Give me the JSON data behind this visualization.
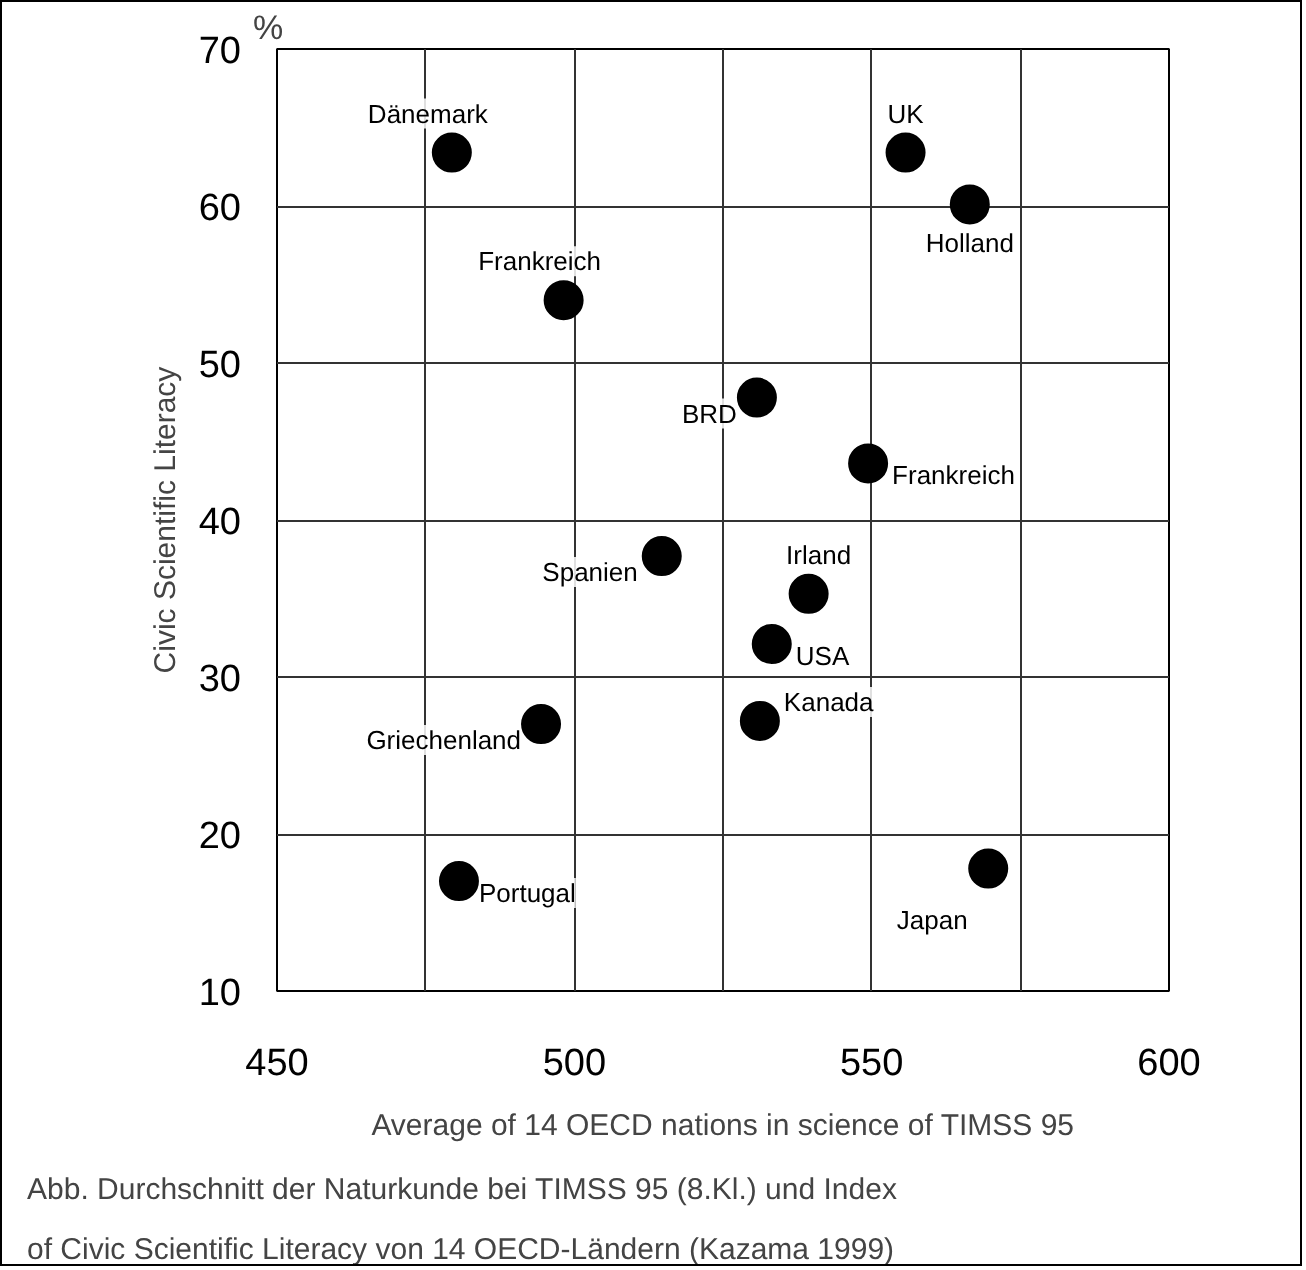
{
  "chart_data": {
    "type": "scatter",
    "xlabel": "Average of 14 OECD nations in science of TIMSS 95",
    "ylabel": "Civic Scientific Literacy",
    "x": [
      479.4,
      555.7,
      566.5,
      498.2,
      530.7,
      549.4,
      514.7,
      539.4,
      533.2,
      531.2,
      494.4,
      480.6,
      569.6
    ],
    "series": [
      {
        "color": "#000000",
        "values": [
          63.4,
          63.4,
          60.1,
          54.0,
          47.8,
          43.6,
          37.7,
          35.3,
          32.1,
          27.2,
          27.0,
          17.0,
          17.8
        ]
      }
    ],
    "marker": "circle",
    "grid": true,
    "xlim": [
      450,
      600
    ],
    "xticks": [
      450,
      {
        "value": 475,
        "label": null
      },
      500,
      {
        "value": 525,
        "label": null
      },
      550,
      {
        "value": 575,
        "label": null
      },
      600
    ],
    "ylim": [
      10,
      70
    ],
    "yticks": [
      10,
      20,
      30,
      40,
      50,
      60,
      70
    ],
    "annotations": [
      {
        "text": "Dänemark",
        "x": 479.4,
        "y": 63.4
      },
      {
        "text": "UK",
        "x": 555.7,
        "y": 63.4
      },
      {
        "text": "Holland",
        "x": 566.5,
        "y": 60.1
      },
      {
        "text": "Frankreich",
        "x": 498.2,
        "y": 54.0
      },
      {
        "text": "BRD",
        "x": 530.7,
        "y": 47.8
      },
      {
        "text": "Frankreich",
        "x": 549.4,
        "y": 43.6
      },
      {
        "text": "Spanien",
        "x": 514.7,
        "y": 37.7
      },
      {
        "text": "Irland",
        "x": 539.4,
        "y": 35.3
      },
      {
        "text": "USA",
        "x": 533.2,
        "y": 32.1
      },
      {
        "text": "Kanada",
        "x": 531.2,
        "y": 27.2
      },
      {
        "text": "Griechenland",
        "x": 494.4,
        "y": 27.0
      },
      {
        "text": "Portugal",
        "x": 480.6,
        "y": 17.0
      },
      {
        "text": "Japan",
        "x": 569.6,
        "y": 17.8
      },
      "%",
      "Abb. Durchschnitt der Naturkunde bei TIMSS 95 (8.Kl.) und Index\nof Civic Scientific Literacy von 14 OECD-Ländern (Kazama 1999)"
    ]
  }
}
